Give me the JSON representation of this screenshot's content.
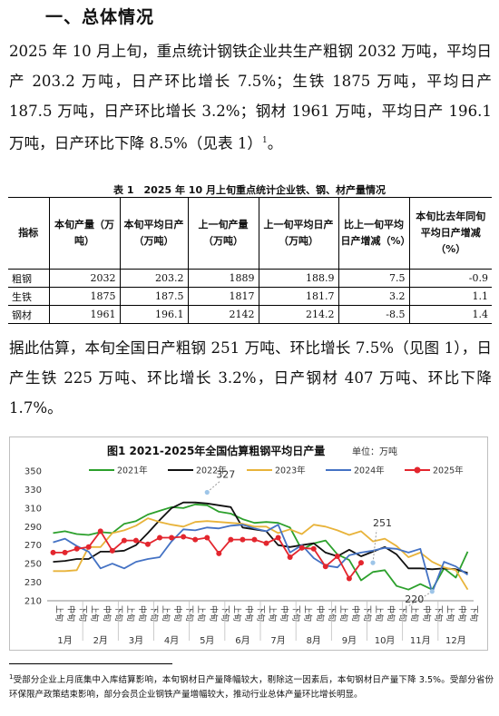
{
  "section_title": "一、总体情况",
  "paragraph1": {
    "text": "2025 年 10 月上旬，重点统计钢铁企业共生产粗钢 2032 万吨，平均日产 203.2 万吨，日产环比增长 7.5%；生铁 1875 万吨，平均日产 187.5 万吨，日产环比增长 3.2%；钢材 1961 万吨，平均日产 196.1 万吨，日产环比下降 8.5%（见表 1）",
    "footnote_mark": "1",
    "end": "。"
  },
  "table": {
    "caption": "表 1　2025 年 10 月上旬重点统计企业铁、钢、材产量情况",
    "headers": [
      "指标",
      "本旬产量（万吨）",
      "本旬平均日产（万吨）",
      "上一旬产量（万吨）",
      "上一旬平均日产（万吨）",
      "比上一旬平均日产增减（%）",
      "本旬比去年同旬平均日产增减（%）"
    ],
    "rows": [
      [
        "粗钢",
        "2032",
        "203.2",
        "1889",
        "188.9",
        "7.5",
        "-0.9"
      ],
      [
        "生铁",
        "1875",
        "187.5",
        "1817",
        "181.7",
        "3.2",
        "1.1"
      ],
      [
        "钢材",
        "1961",
        "196.1",
        "2142",
        "214.2",
        "-8.5",
        "1.4"
      ]
    ]
  },
  "paragraph2": "据此估算，本旬全国日产粗钢 251 万吨、环比增长 7.5%（见图 1），日产生铁 225 万吨、环比增长 3.2%，日产钢材 407 万吨、环比下降 1.7%。",
  "chart_data": {
    "type": "line",
    "title": "图1  2021-2025年全国估算粗钢平均日产量",
    "unit": "单位：万吨",
    "ylim": [
      210,
      350
    ],
    "yticks": [
      210,
      230,
      250,
      270,
      290,
      310,
      330,
      350
    ],
    "month_labels": [
      "1月",
      "2月",
      "3月",
      "4月",
      "5月",
      "6月",
      "7月",
      "8月",
      "9月",
      "10月",
      "11月",
      "12月"
    ],
    "dekad_labels": [
      "上旬",
      "中旬",
      "下旬"
    ],
    "legend": "top",
    "grid": false,
    "annotations": [
      {
        "text": "327",
        "x": 13,
        "y": 327
      },
      {
        "text": "251",
        "x": 27,
        "y": 251
      },
      {
        "text": "220",
        "x": 32,
        "y": 220
      }
    ],
    "series": [
      {
        "name": "2021年",
        "color": "#2ca02c",
        "marker": "none",
        "values": [
          283,
          285,
          282,
          281,
          284,
          283,
          293,
          296,
          303,
          307,
          311,
          310,
          314,
          313,
          306,
          304,
          298,
          294,
          295,
          294,
          289,
          265,
          272,
          275,
          260,
          254,
          232,
          241,
          243,
          226,
          222,
          228,
          222,
          245,
          235,
          263
        ]
      },
      {
        "name": "2022年",
        "color": "#111111",
        "marker": "none",
        "values": [
          252,
          253,
          255,
          255,
          263,
          263,
          264,
          270,
          283,
          297,
          310,
          316,
          316,
          315,
          313,
          311,
          289,
          287,
          285,
          270,
          268,
          270,
          272,
          262,
          258,
          265,
          258,
          263,
          268,
          260,
          245,
          245,
          244,
          245,
          244,
          240
        ]
      },
      {
        "name": "2023年",
        "color": "#e8b33a",
        "marker": "none",
        "values": [
          242,
          242,
          243,
          268,
          268,
          283,
          286,
          291,
          299,
          295,
          292,
          290,
          295,
          296,
          295,
          294,
          293,
          290,
          290,
          283,
          287,
          282,
          292,
          290,
          286,
          281,
          285,
          274,
          277,
          269,
          257,
          262,
          252,
          246,
          243,
          222
        ]
      },
      {
        "name": "2024年",
        "color": "#4472c4",
        "marker": "none",
        "values": [
          273,
          277,
          269,
          263,
          245,
          250,
          245,
          252,
          255,
          257,
          274,
          287,
          286,
          289,
          288,
          291,
          292,
          288,
          285,
          292,
          262,
          270,
          256,
          248,
          246,
          259,
          262,
          264,
          267,
          266,
          262,
          266,
          219,
          252,
          247,
          238
        ]
      },
      {
        "name": "2025年",
        "color": "#e3262e",
        "marker": "circle",
        "values": [
          262,
          262,
          266,
          268,
          285,
          264,
          275,
          275,
          271,
          278,
          278,
          279,
          276,
          278,
          261,
          276,
          276,
          276,
          272,
          278,
          257,
          267,
          266,
          247,
          258,
          234,
          251
        ]
      }
    ]
  },
  "footnote": {
    "mark": "1",
    "text": "受部分企业上月底集中入库结算影响，本旬钢材日产量降幅较大，剔除这一因素后，本旬钢材日产量下降 3.5%。受部分省份环保限产政策结束影响，部分会员企业钢铁产量增幅较大，推动行业总体产量环比增长明显。"
  }
}
